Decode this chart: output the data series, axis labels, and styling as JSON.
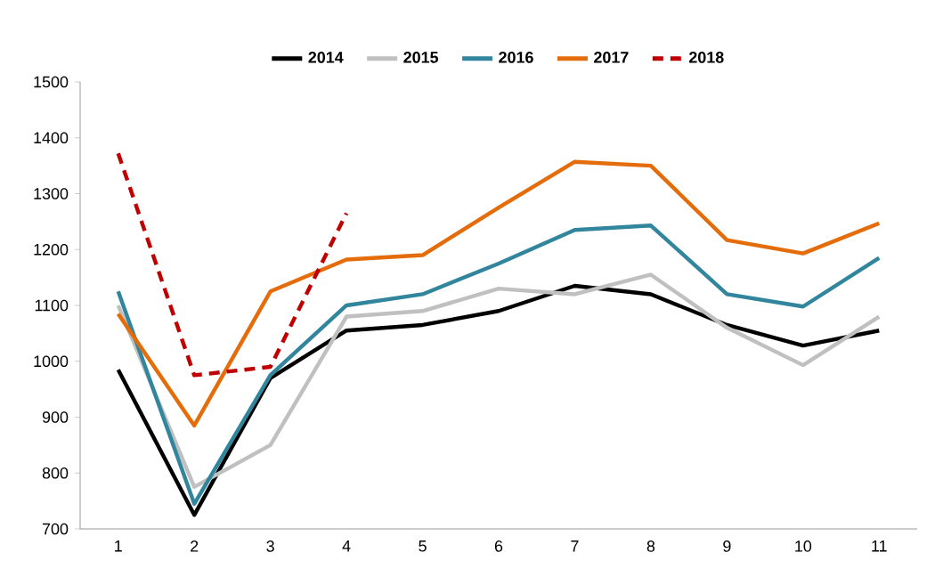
{
  "chart_data": {
    "type": "line",
    "categories": [
      "1",
      "2",
      "3",
      "4",
      "5",
      "6",
      "7",
      "8",
      "9",
      "10",
      "11"
    ],
    "series": [
      {
        "name": "2014",
        "color": "#000000",
        "values": [
          985,
          725,
          970,
          1055,
          1065,
          1090,
          1135,
          1120,
          1065,
          1028,
          1055
        ]
      },
      {
        "name": "2015",
        "color": "#c0c0c0",
        "values": [
          1100,
          775,
          850,
          1080,
          1090,
          1130,
          1120,
          1155,
          1060,
          993,
          1080
        ]
      },
      {
        "name": "2016",
        "color": "#31859c",
        "values": [
          1125,
          745,
          975,
          1100,
          1120,
          1175,
          1235,
          1243,
          1120,
          1098,
          1185
        ]
      },
      {
        "name": "2017",
        "color": "#e46c0a",
        "values": [
          1085,
          885,
          1125,
          1182,
          1190,
          1275,
          1357,
          1350,
          1217,
          1193,
          1247
        ]
      },
      {
        "name": "2018",
        "color": "#c00000",
        "line_style": "dashed",
        "values": [
          1372,
          975,
          990,
          1265,
          null,
          null,
          null,
          null,
          null,
          null,
          null
        ]
      }
    ],
    "ylim": [
      700,
      1500
    ],
    "yticks": [
      700,
      800,
      900,
      1000,
      1100,
      1200,
      1300,
      1400,
      1500
    ],
    "grid": false,
    "legend": "top",
    "marker": "none",
    "line_style": "solid"
  }
}
